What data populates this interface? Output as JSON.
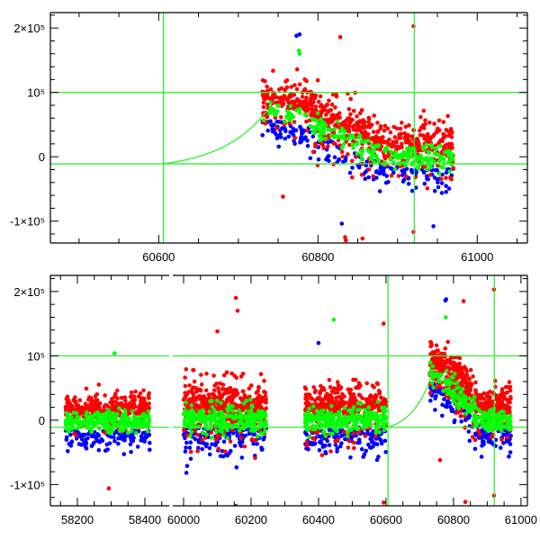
{
  "chart_data": [
    {
      "type": "scatter",
      "panel": "top",
      "title": "",
      "xlabel": "",
      "ylabel": "",
      "grid": false,
      "legend": "none",
      "x_segments": [
        {
          "xlim": [
            60464,
            61063
          ],
          "major_ticks": [
            60600,
            60800,
            61000
          ],
          "minor_step": 50
        }
      ],
      "ylim": [
        -134000,
        224000
      ],
      "y_ticks": [
        {
          "value": 200000,
          "label": "2×10⁵"
        },
        {
          "value": 100000,
          "label": "10⁵"
        },
        {
          "value": 0,
          "label": "0"
        },
        {
          "value": -100000,
          "label": "-1×10⁵"
        }
      ],
      "y_minor_step": 20000,
      "x_tick_labels": [
        "60600",
        "60800",
        "61000"
      ],
      "reference_lines": {
        "vertical": [
          60606,
          60921
        ],
        "horizontal": [
          100000,
          -11000
        ]
      },
      "model_curve": {
        "x_start": 60606,
        "x_end": 60735,
        "y_start": -11000,
        "y_end": 70000,
        "shape": "exponential-rise"
      },
      "series": [
        {
          "name": "red",
          "color": "#ff0000"
        },
        {
          "name": "blue",
          "color": "#0000ff"
        },
        {
          "name": "green",
          "color": "#00ff00"
        }
      ],
      "clusters": [
        {
          "x": [
            60730,
            60790
          ],
          "y_center": 75000,
          "y_end": 60000,
          "spread": 18000,
          "counts": {
            "blue": 60,
            "red": 150,
            "green": 30
          }
        },
        {
          "x": [
            60790,
            60880
          ],
          "y_center": 55000,
          "y_end": 5000,
          "spread": 22000,
          "counts": {
            "blue": 60,
            "red": 260,
            "green": 90
          }
        },
        {
          "x": [
            60880,
            60970
          ],
          "y_center": 2000,
          "y_end": 0,
          "spread": 20000,
          "counts": {
            "blue": 70,
            "red": 220,
            "green": 110
          }
        }
      ],
      "outliers": [
        {
          "series": "blue",
          "x": 60773,
          "y": 188000
        },
        {
          "series": "blue",
          "x": 60777,
          "y": 190000
        },
        {
          "series": "green",
          "x": 60776,
          "y": 165000
        },
        {
          "series": "green",
          "x": 60777,
          "y": 160000
        },
        {
          "series": "red",
          "x": 60828,
          "y": 186000
        },
        {
          "series": "red",
          "x": 60920,
          "y": 203000
        },
        {
          "series": "red",
          "x": 60756,
          "y": -62000
        },
        {
          "series": "red",
          "x": 60834,
          "y": -125000
        },
        {
          "series": "red",
          "x": 60835,
          "y": -130000
        },
        {
          "series": "blue",
          "x": 60830,
          "y": -104000
        },
        {
          "series": "red",
          "x": 60920,
          "y": -117000
        },
        {
          "series": "blue",
          "x": 60945,
          "y": -108000
        },
        {
          "series": "red",
          "x": 60856,
          "y": -127000
        }
      ]
    },
    {
      "type": "scatter",
      "panel": "bottom",
      "title": "",
      "xlabel": "",
      "ylabel": "",
      "grid": false,
      "legend": "none",
      "x_segments": [
        {
          "xlim": [
            58120,
            58472
          ],
          "major_ticks": [
            58200,
            58400
          ],
          "minor_step": 50
        },
        {
          "xlim": [
            59968,
            61019
          ],
          "major_ticks": [
            60000,
            60200,
            60400,
            60600,
            60800,
            61000
          ],
          "minor_step": 50
        }
      ],
      "ylim": [
        -133000,
        225000
      ],
      "y_ticks": [
        {
          "value": 200000,
          "label": "2×10⁵"
        },
        {
          "value": 100000,
          "label": "10⁵"
        },
        {
          "value": 0,
          "label": "0"
        },
        {
          "value": -100000,
          "label": "-1×10⁵"
        }
      ],
      "y_minor_step": 20000,
      "x_tick_labels": [
        "58200",
        "58400",
        "60000",
        "60200",
        "60400",
        "60600",
        "60800",
        "61000"
      ],
      "reference_lines": {
        "vertical": [
          60606,
          60921
        ],
        "horizontal": [
          100000,
          -11000
        ]
      },
      "model_curve": {
        "x_start": 60606,
        "x_end": 60735,
        "y_start": -11000,
        "y_end": 70000,
        "shape": "exponential-rise"
      },
      "series": [
        {
          "name": "red",
          "color": "#ff0000"
        },
        {
          "name": "blue",
          "color": "#0000ff"
        },
        {
          "name": "green",
          "color": "#00ff00"
        }
      ],
      "clusters": [
        {
          "x": [
            58165,
            58415
          ],
          "y_center": 0,
          "y_end": 0,
          "spread": 16000,
          "counts": {
            "blue": 120,
            "red": 320,
            "green": 260
          }
        },
        {
          "x": [
            60000,
            60245
          ],
          "y_center": 5000,
          "y_end": 5000,
          "spread": 24000,
          "counts": {
            "blue": 140,
            "red": 420,
            "green": 260
          }
        },
        {
          "x": [
            60360,
            60600
          ],
          "y_center": 2000,
          "y_end": 5000,
          "spread": 22000,
          "counts": {
            "blue": 140,
            "red": 360,
            "green": 240
          }
        },
        {
          "x": [
            60730,
            60790
          ],
          "y_center": 75000,
          "y_end": 60000,
          "spread": 18000,
          "counts": {
            "blue": 50,
            "red": 130,
            "green": 30
          }
        },
        {
          "x": [
            60790,
            60880
          ],
          "y_center": 55000,
          "y_end": 5000,
          "spread": 22000,
          "counts": {
            "blue": 50,
            "red": 220,
            "green": 90
          }
        },
        {
          "x": [
            60880,
            60970
          ],
          "y_center": 2000,
          "y_end": 0,
          "spread": 20000,
          "counts": {
            "blue": 60,
            "red": 200,
            "green": 110
          }
        }
      ],
      "outliers": [
        {
          "series": "green",
          "x": 58310,
          "y": 104000
        },
        {
          "series": "red",
          "x": 58293,
          "y": -106000
        },
        {
          "series": "red",
          "x": 60155,
          "y": 190000
        },
        {
          "series": "red",
          "x": 60160,
          "y": 170000
        },
        {
          "series": "red",
          "x": 60100,
          "y": 138000
        },
        {
          "series": "red",
          "x": 60155,
          "y": -133000
        },
        {
          "series": "green",
          "x": 60445,
          "y": 156000
        },
        {
          "series": "blue",
          "x": 60400,
          "y": 120000
        },
        {
          "series": "red",
          "x": 60593,
          "y": 150000
        },
        {
          "series": "red",
          "x": 60593,
          "y": -128000
        },
        {
          "series": "blue",
          "x": 60778,
          "y": 188000
        },
        {
          "series": "blue",
          "x": 60776,
          "y": 186000
        },
        {
          "series": "red",
          "x": 60830,
          "y": 185000
        },
        {
          "series": "red",
          "x": 60920,
          "y": 203000
        },
        {
          "series": "green",
          "x": 60777,
          "y": 160000
        },
        {
          "series": "red",
          "x": 60760,
          "y": -62000
        },
        {
          "series": "red",
          "x": 60835,
          "y": -127000
        },
        {
          "series": "red",
          "x": 60920,
          "y": -117000
        }
      ]
    }
  ]
}
